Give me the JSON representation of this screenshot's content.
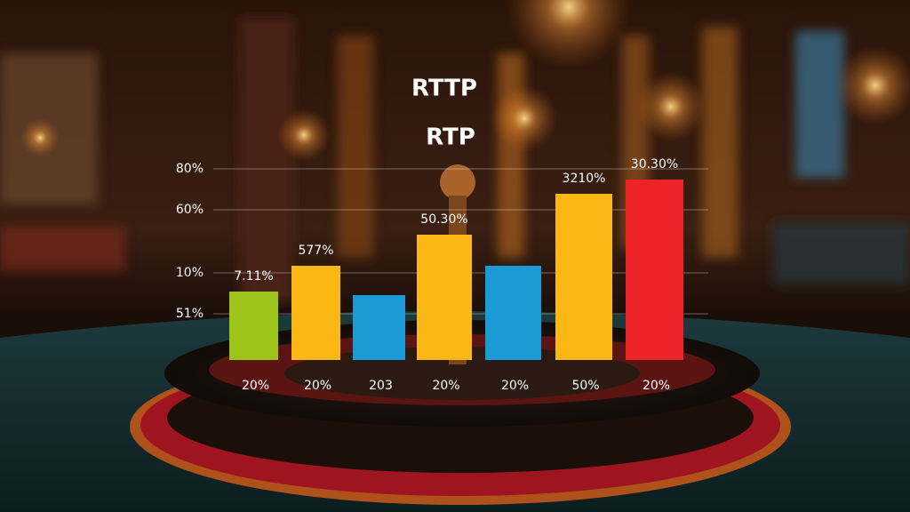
{
  "titles": [
    "RTTP",
    "RTP"
  ],
  "axis_labels": [
    "80%",
    "60%",
    "10%",
    "51%"
  ],
  "bars": [
    {
      "top_label": "7.11%",
      "bottom_label": "20%",
      "color": "#9dc41a"
    },
    {
      "top_label": "577%",
      "bottom_label": "20%",
      "color": "#fbb713"
    },
    {
      "top_label": null,
      "bottom_label": "203",
      "color": "#1b9ad6"
    },
    {
      "top_label": "50.30%",
      "bottom_label": "20%",
      "color": "#fbb713"
    },
    {
      "top_label": null,
      "bottom_label": "20%",
      "color": "#1b9ad6"
    },
    {
      "top_label": "3210%",
      "bottom_label": "50%",
      "color": "#fbb713"
    },
    {
      "top_label": "30.30%",
      "bottom_label": "20%",
      "color": "#ee2229"
    }
  ]
}
